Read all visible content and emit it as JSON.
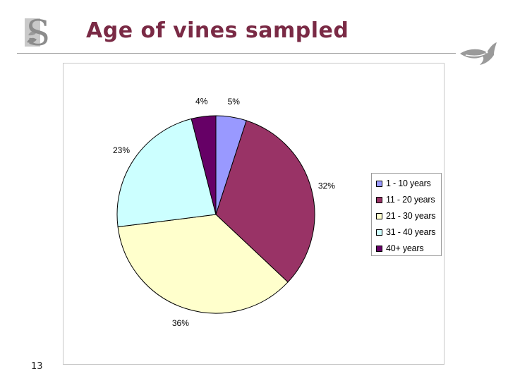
{
  "header": {
    "title": "Age of vines sampled",
    "logo_letter": "S"
  },
  "page_number": "13",
  "chart_data": {
    "type": "pie",
    "title": "",
    "start_angle_deg": 0,
    "direction": "clockwise",
    "legend_position": "right",
    "slices": [
      {
        "name": "1 - 10 years",
        "value": 5,
        "label": "5%",
        "color": "#9999ff"
      },
      {
        "name": "11 - 20 years",
        "value": 32,
        "label": "32%",
        "color": "#993366"
      },
      {
        "name": "21 - 30 years",
        "value": 36,
        "label": "36%",
        "color": "#ffffcc"
      },
      {
        "name": "31 - 40 years",
        "value": 23,
        "label": "23%",
        "color": "#ccffff"
      },
      {
        "name": "40+ years",
        "value": 4,
        "label": "4%",
        "color": "#660066"
      }
    ]
  }
}
